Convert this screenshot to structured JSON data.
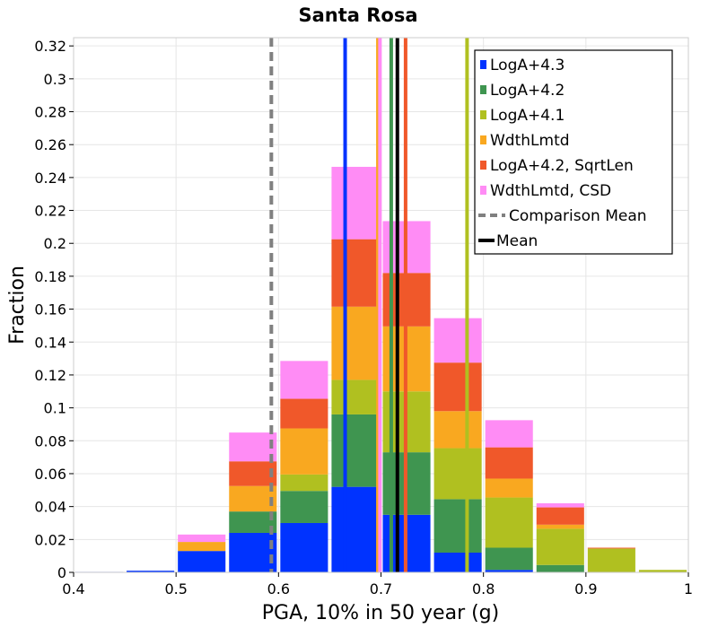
{
  "chart_data": {
    "type": "bar",
    "stacked": true,
    "title": "Santa Rosa",
    "xlabel": "PGA, 10% in 50 year (g)",
    "ylabel": "Fraction",
    "xlim": [
      0.4,
      1.0
    ],
    "ylim": [
      0,
      0.325
    ],
    "bin_width": 0.05,
    "grid": true,
    "legend_position": "top-right",
    "x_ticks": [
      "0.4",
      "0.5",
      "0.6",
      "0.7",
      "0.8",
      "0.9",
      "1"
    ],
    "x_tick_values": [
      0.4,
      0.5,
      0.6,
      0.7,
      0.8,
      0.9,
      1.0
    ],
    "y_ticks": [
      "0",
      "0.02",
      "0.04",
      "0.06",
      "0.08",
      "0.1",
      "0.12",
      "0.14",
      "0.16",
      "0.18",
      "0.2",
      "0.22",
      "0.24",
      "0.26",
      "0.28",
      "0.3",
      "0.32"
    ],
    "y_tick_values": [
      0,
      0.02,
      0.04,
      0.06,
      0.08,
      0.1,
      0.12,
      0.14,
      0.16,
      0.18,
      0.2,
      0.22,
      0.24,
      0.26,
      0.28,
      0.3,
      0.32
    ],
    "bin_centers": [
      0.425,
      0.475,
      0.525,
      0.575,
      0.625,
      0.675,
      0.725,
      0.775,
      0.825,
      0.875,
      0.925,
      0.975
    ],
    "series": [
      {
        "name": "LogA+4.3",
        "color": "#0033ff",
        "values": [
          0.0003,
          0.001,
          0.013,
          0.024,
          0.03,
          0.052,
          0.035,
          0.012,
          0.0015,
          0.0,
          0.0,
          0.0
        ]
      },
      {
        "name": "LogA+4.2",
        "color": "#3f9550",
        "values": [
          0.0,
          0.0,
          0.0,
          0.013,
          0.0195,
          0.044,
          0.038,
          0.0325,
          0.0135,
          0.0045,
          0.0,
          0.0
        ]
      },
      {
        "name": "LogA+4.1",
        "color": "#b0c020",
        "values": [
          0.0,
          0.0,
          0.0,
          0.0,
          0.01,
          0.021,
          0.037,
          0.031,
          0.0305,
          0.022,
          0.0145,
          0.0015
        ]
      },
      {
        "name": "WdthLmtd",
        "color": "#f9a820",
        "values": [
          0.0,
          0.0,
          0.0055,
          0.0155,
          0.028,
          0.0445,
          0.0395,
          0.0225,
          0.0115,
          0.0025,
          0.0,
          0.0
        ]
      },
      {
        "name": "LogA+4.2, SqrtLen",
        "color": "#f0582a",
        "values": [
          0.0,
          0.0,
          0.0,
          0.015,
          0.018,
          0.041,
          0.0325,
          0.0295,
          0.019,
          0.0105,
          0.0005,
          0.0
        ]
      },
      {
        "name": "WdthLmtd, CSD",
        "color": "#ff8cf5",
        "values": [
          0.0,
          0.0,
          0.0045,
          0.0175,
          0.023,
          0.044,
          0.0315,
          0.027,
          0.0165,
          0.0025,
          0.0,
          0.0
        ]
      }
    ],
    "vertical_lines": [
      {
        "name": "LogA+4.3 mean",
        "x": 0.665,
        "color": "#0033ff",
        "style": "solid"
      },
      {
        "name": "LogA+4.1 mean",
        "x": 0.784,
        "color": "#b0c020",
        "style": "solid"
      },
      {
        "name": "WdthLmtd mean",
        "x": 0.697,
        "color": "#f9a820",
        "style": "solid"
      },
      {
        "name": "WdthLmtd, CSD mean",
        "x": 0.699,
        "color": "#ff8cf5",
        "style": "solid"
      },
      {
        "name": "LogA+4.2, SqrtLen mean",
        "x": 0.724,
        "color": "#f0582a",
        "style": "solid"
      },
      {
        "name": "LogA+4.2 mean",
        "x": 0.71,
        "color": "#3f9550",
        "style": "solid"
      },
      {
        "name": "Comparison Mean",
        "x": 0.593,
        "color": "#808080",
        "style": "dashed"
      },
      {
        "name": "Mean",
        "x": 0.716,
        "color": "#000000",
        "style": "solid"
      }
    ],
    "legend": [
      {
        "label": "LogA+4.3",
        "color": "#0033ff",
        "kind": "box"
      },
      {
        "label": "LogA+4.2",
        "color": "#3f9550",
        "kind": "box"
      },
      {
        "label": "LogA+4.1",
        "color": "#b0c020",
        "kind": "box"
      },
      {
        "label": "WdthLmtd",
        "color": "#f9a820",
        "kind": "box"
      },
      {
        "label": "LogA+4.2, SqrtLen",
        "color": "#f0582a",
        "kind": "box"
      },
      {
        "label": "WdthLmtd, CSD",
        "color": "#ff8cf5",
        "kind": "box"
      },
      {
        "label": "Comparison Mean",
        "color": "#808080",
        "kind": "dashed"
      },
      {
        "label": "Mean",
        "color": "#000000",
        "kind": "line"
      }
    ]
  }
}
